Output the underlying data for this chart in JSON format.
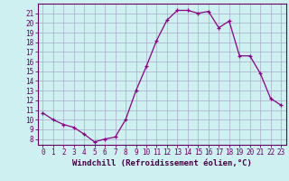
{
  "x": [
    0,
    1,
    2,
    3,
    4,
    5,
    6,
    7,
    8,
    9,
    10,
    11,
    12,
    13,
    14,
    15,
    16,
    17,
    18,
    19,
    20,
    21,
    22,
    23
  ],
  "y": [
    10.7,
    10.0,
    9.5,
    9.2,
    8.5,
    7.7,
    8.0,
    8.2,
    10.0,
    13.0,
    15.5,
    18.2,
    20.3,
    21.3,
    21.3,
    21.0,
    21.2,
    19.5,
    20.2,
    16.6,
    16.6,
    14.8,
    12.2,
    11.5
  ],
  "line_color": "#880088",
  "marker": "+",
  "markersize": 3,
  "linewidth": 0.9,
  "bg_color": "#cef0f0",
  "grid_color": "#aaaacc",
  "xlabel": "Windchill (Refroidissement éolien,°C)",
  "xlabel_fontsize": 6.5,
  "ylabel_ticks": [
    8,
    9,
    10,
    11,
    12,
    13,
    14,
    15,
    16,
    17,
    18,
    19,
    20,
    21
  ],
  "ylim": [
    7.4,
    22.0
  ],
  "xlim": [
    -0.5,
    23.5
  ],
  "tick_fontsize": 5.5,
  "tick_color": "#660066",
  "spine_color": "#660066",
  "label_color": "#440044"
}
